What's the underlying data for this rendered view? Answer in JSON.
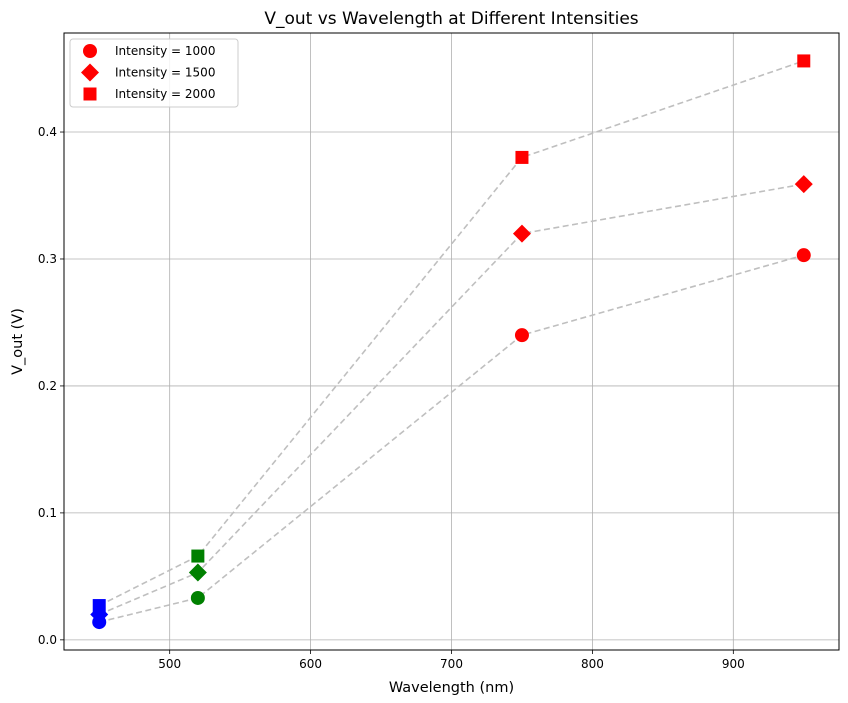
{
  "chart_data": {
    "type": "scatter",
    "title": "V_out vs Wavelength at Different Intensities",
    "xlabel": "Wavelength (nm)",
    "ylabel": "V_out (V)",
    "xlim": [
      425,
      975
    ],
    "ylim": [
      -0.008,
      0.478
    ],
    "xticks": [
      500,
      600,
      700,
      800,
      900
    ],
    "yticks": [
      0.0,
      0.1,
      0.2,
      0.3,
      0.4
    ],
    "xtick_labels": [
      "500",
      "600",
      "700",
      "800",
      "900"
    ],
    "ytick_labels": [
      "0.0",
      "0.1",
      "0.2",
      "0.3",
      "0.4"
    ],
    "grid": true,
    "legend_position": "top-left",
    "line_color": "#bfbfbf",
    "line_style": "dashed",
    "series": [
      {
        "name": "Intensity = 1000",
        "marker": "circle",
        "x": [
          450,
          520,
          750,
          950
        ],
        "y": [
          0.014,
          0.033,
          0.24,
          0.303
        ],
        "colors": [
          "#0000ff",
          "#008000",
          "#ff0000",
          "#ff0000"
        ]
      },
      {
        "name": "Intensity = 1500",
        "marker": "diamond",
        "x": [
          450,
          520,
          750,
          950
        ],
        "y": [
          0.02,
          0.053,
          0.32,
          0.359
        ],
        "colors": [
          "#0000ff",
          "#008000",
          "#ff0000",
          "#ff0000"
        ]
      },
      {
        "name": "Intensity = 2000",
        "marker": "square",
        "x": [
          450,
          520,
          750,
          950
        ],
        "y": [
          0.027,
          0.066,
          0.38,
          0.456
        ],
        "colors": [
          "#0000ff",
          "#008000",
          "#ff0000",
          "#ff0000"
        ]
      }
    ],
    "legend_marker_color": "#ff0000"
  }
}
